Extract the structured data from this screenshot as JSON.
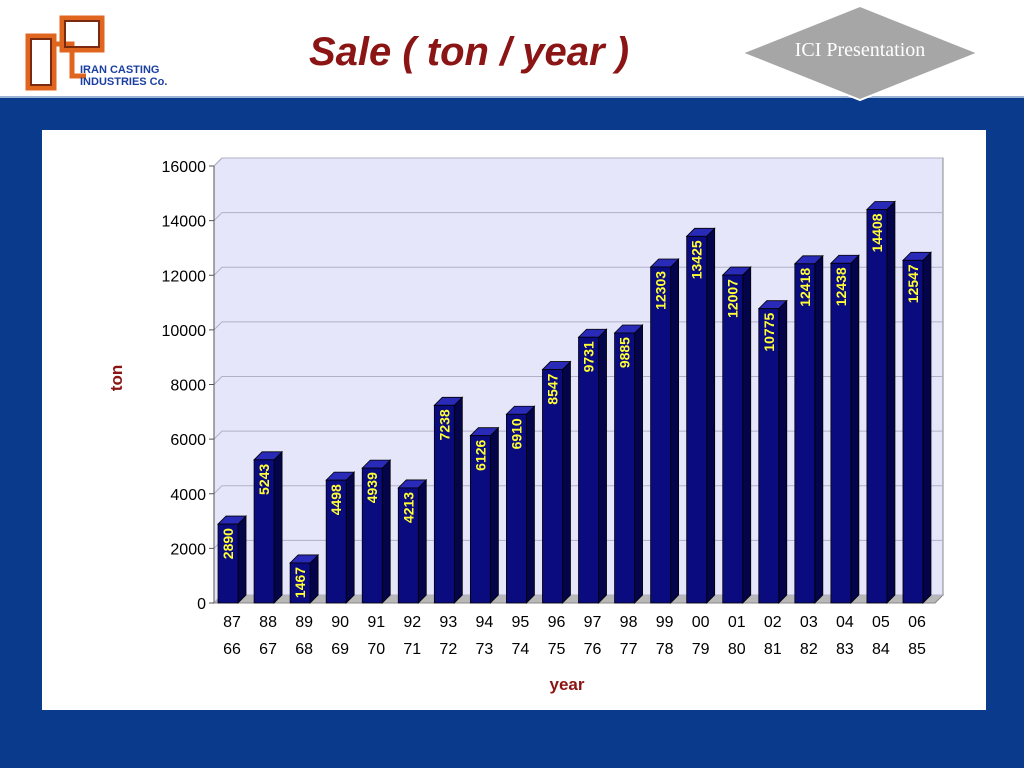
{
  "header": {
    "title": "Sale ( ton / year )",
    "company_line1": "IRAN CASTING",
    "company_line2": "INDUSTRIES Co.",
    "badge": "ICI Presentation"
  },
  "colors": {
    "background": "#0a3a8c",
    "bar_front": "#0b0b80",
    "bar_side": "#04044a",
    "bar_top": "#2a2ab8",
    "plot_bg": "#e6e6fa",
    "title": "#8b1414",
    "data_label": "#ffff33"
  },
  "chart_data": {
    "type": "bar",
    "title": "",
    "xlabel": "year",
    "ylabel": "ton",
    "ylim": [
      0,
      16000
    ],
    "yticks": [
      0,
      2000,
      4000,
      6000,
      8000,
      10000,
      12000,
      14000,
      16000
    ],
    "grid": true,
    "categories": [
      [
        "87",
        "66"
      ],
      [
        "88",
        "67"
      ],
      [
        "89",
        "68"
      ],
      [
        "90",
        "69"
      ],
      [
        "91",
        "70"
      ],
      [
        "92",
        "71"
      ],
      [
        "93",
        "72"
      ],
      [
        "94",
        "73"
      ],
      [
        "95",
        "74"
      ],
      [
        "96",
        "75"
      ],
      [
        "97",
        "76"
      ],
      [
        "98",
        "77"
      ],
      [
        "99",
        "78"
      ],
      [
        "00",
        "79"
      ],
      [
        "01",
        "80"
      ],
      [
        "02",
        "81"
      ],
      [
        "03",
        "82"
      ],
      [
        "04",
        "83"
      ],
      [
        "05",
        "84"
      ],
      [
        "06",
        "85"
      ]
    ],
    "values": [
      2890,
      5243,
      1467,
      4498,
      4939,
      4213,
      7238,
      6126,
      6910,
      8547,
      9731,
      9885,
      12303,
      13425,
      12007,
      10775,
      12418,
      12438,
      14408,
      12547
    ]
  }
}
